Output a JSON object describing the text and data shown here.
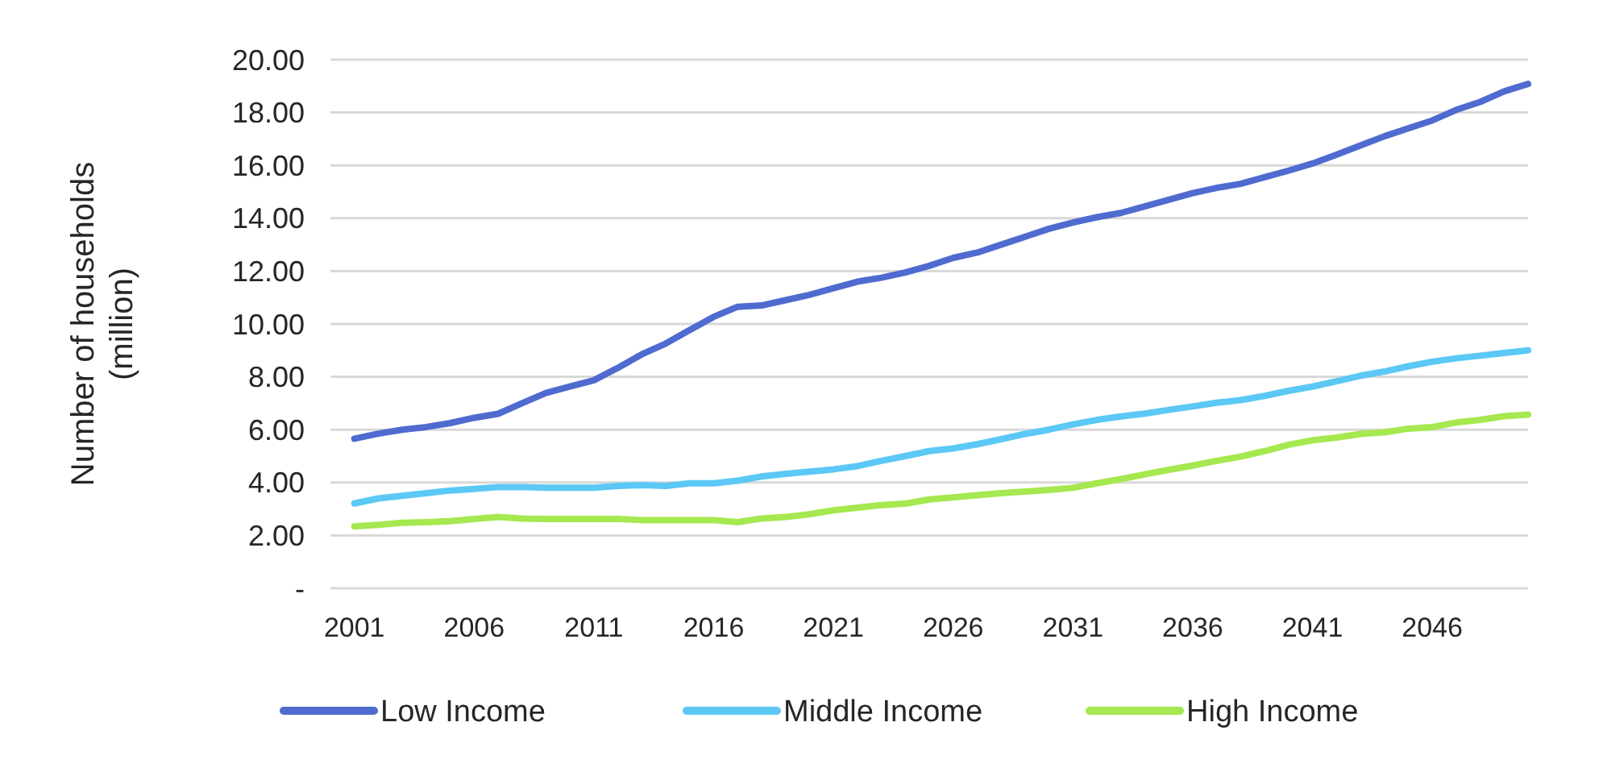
{
  "chart_data": {
    "type": "line",
    "ylabel": "Number of households\n(million)",
    "x": [
      2001,
      2002,
      2003,
      2004,
      2005,
      2006,
      2007,
      2008,
      2009,
      2010,
      2011,
      2012,
      2013,
      2014,
      2015,
      2016,
      2017,
      2018,
      2019,
      2020,
      2021,
      2022,
      2023,
      2024,
      2025,
      2026,
      2027,
      2028,
      2029,
      2030,
      2031,
      2032,
      2033,
      2034,
      2035,
      2036,
      2037,
      2038,
      2039,
      2040,
      2041,
      2042,
      2043,
      2044,
      2045,
      2046,
      2047,
      2048,
      2049,
      2050
    ],
    "xlim": [
      2000,
      2050
    ],
    "xticks": [
      2001,
      2006,
      2011,
      2016,
      2021,
      2026,
      2031,
      2036,
      2041,
      2046
    ],
    "ylim": [
      0,
      20
    ],
    "yticks": [
      {
        "value": 0,
        "label": "-"
      },
      {
        "value": 2,
        "label": "2.00"
      },
      {
        "value": 4,
        "label": "4.00"
      },
      {
        "value": 6,
        "label": "6.00"
      },
      {
        "value": 8,
        "label": "8.00"
      },
      {
        "value": 10,
        "label": "10.00"
      },
      {
        "value": 12,
        "label": "12.00"
      },
      {
        "value": 14,
        "label": "14.00"
      },
      {
        "value": 16,
        "label": "16.00"
      },
      {
        "value": 18,
        "label": "18.00"
      },
      {
        "value": 20,
        "label": "20.00"
      }
    ],
    "grid": "y",
    "legend": "bottom",
    "marker": "none",
    "line_style": "solid",
    "series": [
      {
        "name": "Low Income",
        "color": "#4f6bd0",
        "values": [
          5.66,
          5.85,
          6.0,
          6.1,
          6.25,
          6.45,
          6.6,
          7.0,
          7.39,
          7.63,
          7.87,
          8.34,
          8.85,
          9.26,
          9.77,
          10.27,
          10.65,
          10.7,
          10.9,
          11.1,
          11.35,
          11.6,
          11.75,
          11.95,
          12.2,
          12.5,
          12.7,
          13.0,
          13.3,
          13.6,
          13.84,
          14.04,
          14.2,
          14.45,
          14.7,
          14.95,
          15.15,
          15.3,
          15.55,
          15.8,
          16.07,
          16.4,
          16.75,
          17.1,
          17.4,
          17.7,
          18.1,
          18.4,
          18.8,
          19.08
        ]
      },
      {
        "name": "Middle Income",
        "color": "#5bc8f5",
        "values": [
          3.21,
          3.4,
          3.5,
          3.6,
          3.7,
          3.76,
          3.83,
          3.83,
          3.8,
          3.8,
          3.8,
          3.87,
          3.9,
          3.87,
          3.97,
          3.97,
          4.07,
          4.23,
          4.33,
          4.41,
          4.5,
          4.62,
          4.82,
          5.0,
          5.19,
          5.29,
          5.45,
          5.64,
          5.84,
          6.0,
          6.2,
          6.37,
          6.5,
          6.61,
          6.75,
          6.88,
          7.02,
          7.12,
          7.28,
          7.47,
          7.63,
          7.83,
          8.04,
          8.2,
          8.4,
          8.57,
          8.7,
          8.8,
          8.9,
          9.0
        ]
      },
      {
        "name": "High Income",
        "color": "#a5e84f",
        "values": [
          2.34,
          2.4,
          2.48,
          2.5,
          2.54,
          2.62,
          2.7,
          2.64,
          2.62,
          2.62,
          2.62,
          2.62,
          2.58,
          2.58,
          2.58,
          2.58,
          2.5,
          2.64,
          2.7,
          2.8,
          2.95,
          3.05,
          3.15,
          3.2,
          3.36,
          3.44,
          3.52,
          3.6,
          3.66,
          3.72,
          3.8,
          3.97,
          4.13,
          4.31,
          4.48,
          4.64,
          4.82,
          4.98,
          5.19,
          5.43,
          5.6,
          5.7,
          5.84,
          5.9,
          6.04,
          6.1,
          6.27,
          6.37,
          6.51,
          6.57
        ]
      }
    ]
  }
}
